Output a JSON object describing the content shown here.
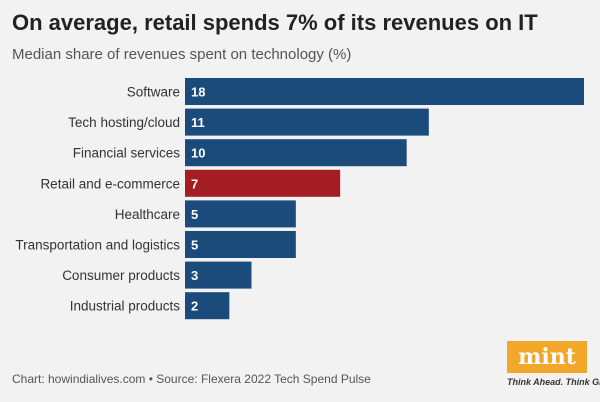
{
  "title": "On average, retail spends 7% of its revenues on IT",
  "subtitle": "Median share of revenues spent on technology (%)",
  "footer": "Chart: howindialives.com • Source: Flexera 2022 Tech Spend Pulse",
  "logo": {
    "text": "mint",
    "tagline": "Think Ahead. Think Growth."
  },
  "colors": {
    "default_bar": "#1a4b7a",
    "highlight_bar": "#a51d24",
    "logo_bg": "#f2a72a"
  },
  "chart_data": {
    "type": "bar",
    "orientation": "horizontal",
    "categories": [
      "Software",
      "Tech hosting/cloud",
      "Financial services",
      "Retail and e-commerce",
      "Healthcare",
      "Transportation and logistics",
      "Consumer products",
      "Industrial products"
    ],
    "values": [
      18,
      11,
      10,
      7,
      5,
      5,
      3,
      2
    ],
    "highlight": "Retail and e-commerce",
    "xlim": [
      0,
      18
    ],
    "data_labels": true
  }
}
